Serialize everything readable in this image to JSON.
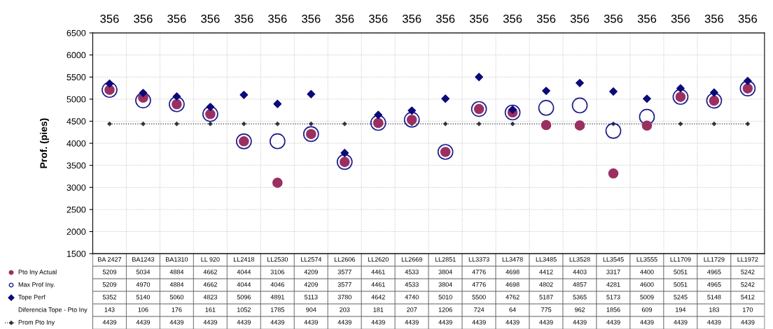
{
  "chart_data": {
    "type": "scatter",
    "ylabel": "Prof. (pies)",
    "categories": [
      "BA 2427",
      "BA1243",
      "BA1310",
      "LL 920",
      "LL2418",
      "LL2530",
      "LL2574",
      "LL2606",
      "LL2620",
      "LL2669",
      "LL2851",
      "LL3373",
      "LL3478",
      "LL3485",
      "LL3528",
      "LL3545",
      "LL3555",
      "LL1709",
      "LL1729",
      "LL1972"
    ],
    "series": [
      {
        "name": "Pto Iny Actual",
        "color": "#9b2f62",
        "marker": "circle",
        "values": [
          5209,
          5034,
          4884,
          4662,
          4044,
          3106,
          4209,
          3577,
          4461,
          4533,
          3804,
          4776,
          4698,
          4412,
          4403,
          3317,
          4400,
          5051,
          4965,
          5242
        ]
      },
      {
        "name": "Max Prof Iny.",
        "color": "#1c1c8c",
        "marker": "circle",
        "values": [
          5209,
          4970,
          4884,
          4662,
          4044,
          4046,
          4209,
          3577,
          4461,
          4533,
          3804,
          4776,
          4698,
          4802,
          4857,
          4281,
          4600,
          5051,
          4965,
          5242
        ]
      },
      {
        "name": "Tope Perf",
        "color": "#0a0a7a",
        "marker": "diamond",
        "values": [
          5352,
          5140,
          5060,
          4823,
          5096,
          4891,
          5113,
          3780,
          4642,
          4740,
          5010,
          5500,
          4762,
          5187,
          5365,
          5173,
          5009,
          5245,
          5148,
          5412
        ]
      },
      {
        "name": "Prom Pto Iny",
        "type": "line",
        "color": "#333333",
        "marker": "diamond",
        "line_style": "dotted",
        "values": [
          4439,
          4439,
          4439,
          4439,
          4439,
          4439,
          4439,
          4439,
          4439,
          4439,
          4439,
          4439,
          4439,
          4439,
          4439,
          4439,
          4439,
          4439,
          4439,
          4439
        ]
      }
    ],
    "ylim": [
      1500,
      6500
    ],
    "yticks": [
      1500,
      2000,
      2500,
      3000,
      3500,
      4000,
      4500,
      5000,
      5500,
      6000,
      6500
    ],
    "grid": true,
    "data_labels": true,
    "legend": "bottom left",
    "annotations": [
      "356",
      "356",
      "356",
      "356",
      "356",
      "356",
      "356",
      "356",
      "356",
      "356",
      "356",
      "356",
      "356",
      "356",
      "356",
      "356",
      "356",
      "356",
      "356",
      "356",
      "Diferencia Tope - Pto Iny",
      "143",
      "106",
      "176",
      "161",
      "1052",
      "1785",
      "904",
      "203",
      "181",
      "207",
      "1206",
      "724",
      "64",
      "775",
      "962",
      "1856",
      "609",
      "194",
      "183",
      "170"
    ]
  }
}
